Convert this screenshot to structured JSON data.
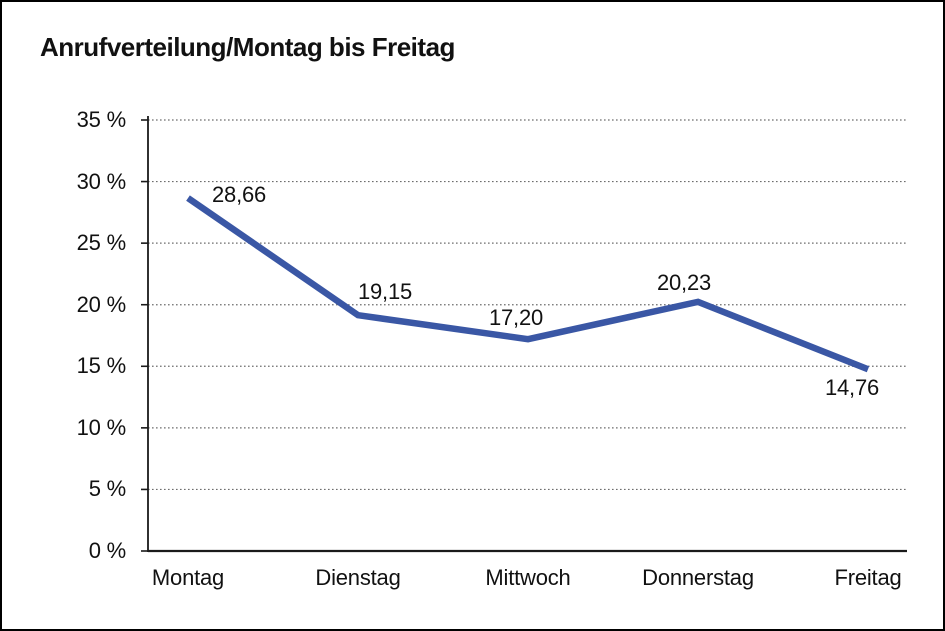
{
  "title": "Anrufverteilung/Montag bis Freitag",
  "colors": {
    "line": "#3A57A5",
    "grid": "#6e6e6e",
    "axis": "#1a1a1a",
    "text": "#111111",
    "background": "#ffffff",
    "frame_border": "#000000"
  },
  "chart_data": {
    "type": "line",
    "title": "Anrufverteilung/Montag bis Freitag",
    "categories": [
      "Montag",
      "Dienstag",
      "Mittwoch",
      "Donnerstag",
      "Freitag"
    ],
    "values": [
      28.66,
      19.15,
      17.2,
      20.23,
      14.76
    ],
    "data_labels": [
      "28,66",
      "19,15",
      "17,20",
      "20,23",
      "14,76"
    ],
    "xlabel": "",
    "ylabel": "",
    "ylim": [
      0,
      35
    ],
    "y_tick_step": 5,
    "y_tick_labels": [
      "0 %",
      "5 %",
      "10 %",
      "15 %",
      "20 %",
      "25 %",
      "30 %",
      "35 %"
    ],
    "grid": "horizontal-dotted",
    "legend": "none",
    "series_color": "#3A57A5"
  }
}
